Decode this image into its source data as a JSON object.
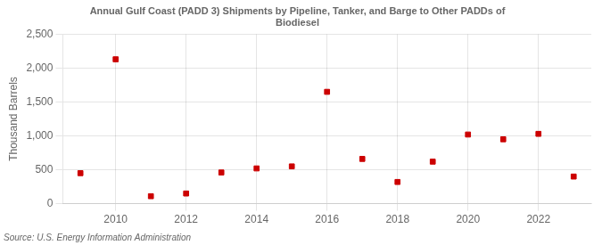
{
  "chart_data": {
    "type": "scatter",
    "title": "Annual Gulf Coast (PADD 3) Shipments by Pipeline, Tanker, and Barge to Other PADDs of\nBiodiesel",
    "y_label": "Thousand Barrels",
    "annotations": [
      "Source: U.S. Energy Information Administration"
    ],
    "x": [
      2009,
      2010,
      2011,
      2012,
      2013,
      2014,
      2015,
      2016,
      2017,
      2018,
      2019,
      2020,
      2021,
      2022,
      2023
    ],
    "values": [
      450,
      2130,
      110,
      150,
      460,
      520,
      550,
      1650,
      660,
      320,
      620,
      1020,
      950,
      1030,
      400
    ],
    "color": "#cc0000",
    "marker": "square",
    "xlim": [
      2008.5,
      2023.5
    ],
    "ylim": [
      0,
      2500
    ],
    "xticks": [
      2010,
      2012,
      2014,
      2016,
      2018,
      2020,
      2022
    ],
    "yticks": [
      0,
      500,
      {
        "value": 1000,
        "label": "1,000"
      },
      {
        "value": 1500,
        "label": "1,500"
      },
      {
        "value": 2000,
        "label": "2,000"
      },
      {
        "value": 2500,
        "label": "2,500"
      }
    ],
    "grid": true
  }
}
